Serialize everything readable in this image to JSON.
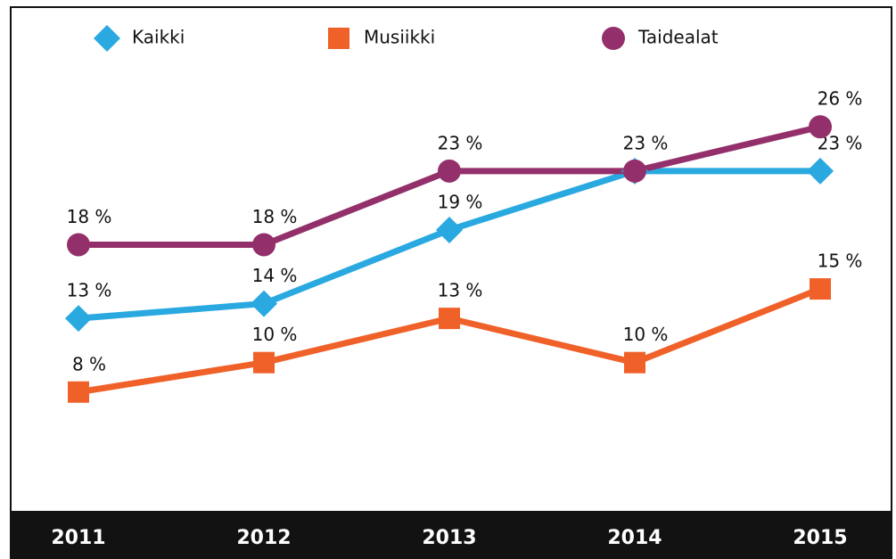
{
  "chart_data": {
    "type": "line",
    "categories": [
      "2011",
      "2012",
      "2013",
      "2014",
      "2015"
    ],
    "ylim": [
      0,
      34
    ],
    "series": [
      {
        "name": "Kaikki",
        "color": "#29a9e0",
        "marker": "diamond",
        "values": [
          13,
          14,
          19,
          23,
          23
        ],
        "value_labels": [
          "13 %",
          "14 %",
          "19 %",
          null,
          "23 %"
        ]
      },
      {
        "name": "Musiikki",
        "color": "#f0612a",
        "marker": "square",
        "values": [
          8,
          10,
          13,
          10,
          15
        ],
        "value_labels": [
          "8 %",
          "10 %",
          "13 %",
          "10 %",
          "15 %"
        ]
      },
      {
        "name": "Taidealat",
        "color": "#93306b",
        "marker": "circle",
        "values": [
          18,
          18,
          23,
          23,
          26
        ],
        "value_labels": [
          "18 %",
          "18 %",
          "23 %",
          "23 %",
          "26 %"
        ]
      }
    ]
  }
}
